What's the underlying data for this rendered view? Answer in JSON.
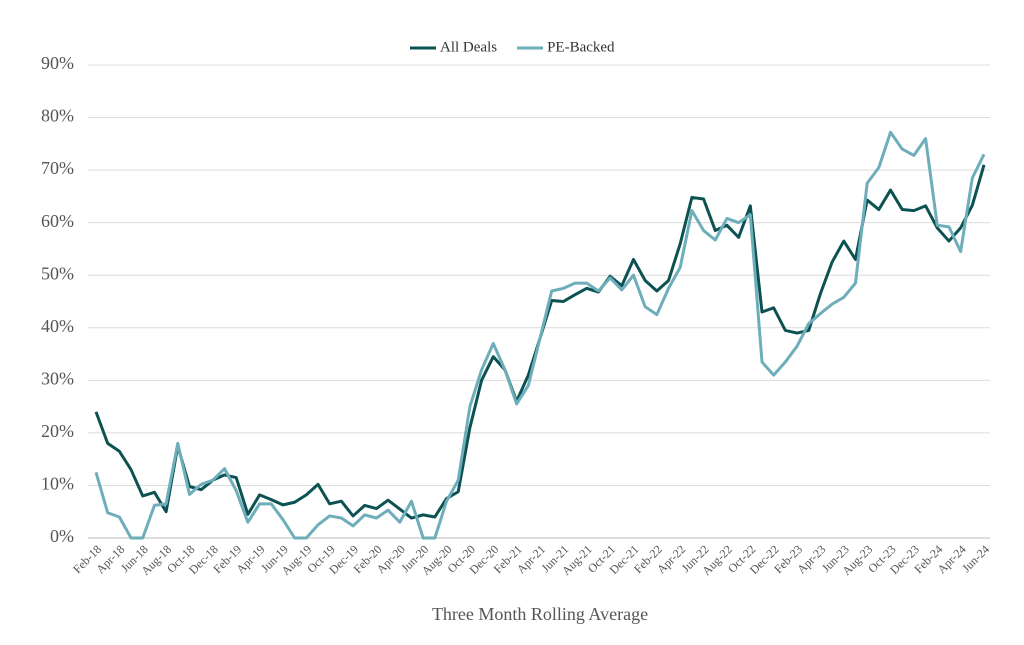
{
  "chart_data": {
    "type": "line",
    "x_label": "Three Month Rolling Average",
    "categories": [
      "Feb-18",
      null,
      "Apr-18",
      null,
      "Jun-18",
      null,
      "Aug-18",
      null,
      "Oct-18",
      null,
      "Dec-18",
      null,
      "Feb-19",
      null,
      "Apr-19",
      null,
      "Jun-19",
      null,
      "Aug-19",
      null,
      "Oct-19",
      null,
      "Dec-19",
      null,
      "Feb-20",
      null,
      "Apr-20",
      null,
      "Jun-20",
      null,
      "Aug-20",
      null,
      "Oct-20",
      null,
      "Dec-20",
      null,
      "Feb-21",
      null,
      "Apr-21",
      null,
      "Jun-21",
      null,
      "Aug-21",
      null,
      "Oct-21",
      null,
      "Dec-21",
      null,
      "Feb-22",
      null,
      "Apr-22",
      null,
      "Jun-22",
      null,
      "Aug-22",
      null,
      "Oct-22",
      null,
      "Dec-22",
      null,
      "Feb-23",
      null,
      "Apr-23",
      null,
      "Jun-23",
      null,
      "Aug-23",
      null,
      "Oct-23",
      null,
      "Dec-23",
      null,
      "Feb-24",
      null,
      "Apr-24",
      null,
      "Jun-24"
    ],
    "series": [
      {
        "name": "All Deals",
        "color": "#0d5252",
        "values": [
          24,
          18,
          16.5,
          13,
          8,
          8.7,
          5,
          17.5,
          9.8,
          9.2,
          11,
          12,
          11.5,
          4.5,
          8.2,
          7.3,
          6.3,
          6.8,
          8.2,
          10.2,
          6.5,
          7,
          4.2,
          6.2,
          5.6,
          7.2,
          5.5,
          3.8,
          4.4,
          4,
          7.5,
          8.8,
          21,
          30,
          34.5,
          32,
          26,
          31,
          38,
          45.2,
          45,
          46.3,
          47.5,
          46.8,
          49.8,
          48,
          53,
          49,
          47,
          49,
          56,
          64.8,
          64.5,
          58.5,
          59.5,
          57.2,
          63.2,
          43,
          43.8,
          39.5,
          39,
          39.5,
          46.5,
          52.5,
          56.5,
          53,
          64.3,
          62.5,
          66.2,
          62.5,
          62.3,
          63.2,
          59,
          56.5,
          59,
          63.3,
          71
        ]
      },
      {
        "name": "PE-Backed",
        "color": "#6eaebb",
        "values": [
          12.5,
          4.8,
          4,
          0,
          0,
          6.2,
          6.5,
          18,
          8.3,
          10.2,
          11,
          13.2,
          9,
          3,
          6.5,
          6.5,
          3.5,
          0,
          0,
          2.5,
          4.2,
          3.8,
          2.3,
          4.4,
          3.8,
          5.3,
          3,
          7,
          0,
          0,
          7,
          11,
          25,
          32,
          37,
          32,
          25.5,
          29,
          38,
          47,
          47.5,
          48.5,
          48.5,
          47,
          49.5,
          47.2,
          50,
          44,
          42.5,
          47.5,
          51.5,
          62.3,
          58.5,
          56.7,
          60.8,
          60,
          61.5,
          33.5,
          31,
          33.5,
          36.5,
          40.8,
          42.7,
          44.5,
          45.8,
          48.5,
          67.5,
          70.5,
          77.2,
          74,
          72.8,
          76,
          59.5,
          59.2,
          54.5,
          68.5,
          73
        ]
      }
    ],
    "ylim": [
      0,
      90
    ],
    "yticks": [
      {
        "value": 0,
        "label": "0%"
      },
      {
        "value": 10,
        "label": "10%"
      },
      {
        "value": 20,
        "label": "20%"
      },
      {
        "value": 30,
        "label": "30%"
      },
      {
        "value": 40,
        "label": "40%"
      },
      {
        "value": 50,
        "label": "50%"
      },
      {
        "value": 60,
        "label": "60%"
      },
      {
        "value": 70,
        "label": "70%"
      },
      {
        "value": 80,
        "label": "80%"
      },
      {
        "value": 90,
        "label": "90%"
      }
    ],
    "grid": true,
    "legend": "top"
  }
}
